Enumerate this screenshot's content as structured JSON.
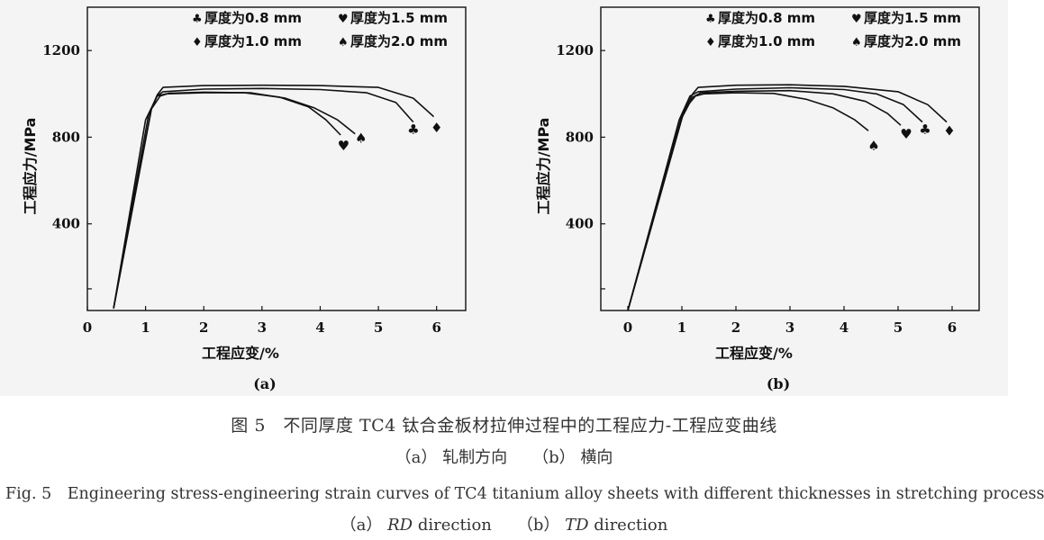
{
  "figure": {
    "caption_zh": "图 5　不同厚度 TC4 钛合金板材拉伸过程中的工程应力-工程应变曲线",
    "caption_zh_sub_a": "（a） 轧制方向",
    "caption_zh_sub_b": "（b） 横向",
    "caption_en": "Fig. 5　Engineering stress-engineering strain curves of TC4 titanium alloy sheets with different thicknesses in stretching process",
    "caption_en_sub_a_prefix": "（a） ",
    "caption_en_sub_a_italic": "RD",
    "caption_en_sub_a_suffix": " direction",
    "caption_en_sub_b_prefix": "（b） ",
    "caption_en_sub_b_italic": "TD",
    "caption_en_sub_b_suffix": " direction"
  },
  "chart_data": [
    {
      "type": "line",
      "panel_label": "(a)",
      "xlabel": "工程应变/%",
      "ylabel": "工程应力/MPa",
      "xlim": [
        0,
        6.5
      ],
      "ylim": [
        0,
        1400
      ],
      "xticks": [
        0,
        1,
        2,
        3,
        4,
        5,
        6
      ],
      "yticks": [
        400,
        800,
        1200
      ],
      "legend": [
        "厚度为0.8 mm",
        "厚度为1.5 mm",
        "厚度为1.0 mm",
        "厚度为2.0 mm"
      ],
      "legend_symbols": [
        "♣",
        "♥",
        "♦",
        "♠"
      ],
      "series": [
        {
          "name": "厚度为0.8 mm",
          "marker": "♣",
          "marker_at": [
            5.6,
            840
          ],
          "x": [
            0.45,
            1.0,
            1.2,
            1.3,
            2.0,
            3.0,
            4.0,
            4.8,
            5.3,
            5.6
          ],
          "y": [
            10,
            880,
            990,
            1010,
            1022,
            1025,
            1020,
            1005,
            960,
            870
          ]
        },
        {
          "name": "厚度为1.5 mm",
          "marker": "♥",
          "marker_at": [
            4.4,
            765
          ],
          "x": [
            0.45,
            1.1,
            1.2,
            1.35,
            2.0,
            2.7,
            3.3,
            3.8,
            4.1,
            4.35
          ],
          "y": [
            10,
            930,
            990,
            1000,
            1005,
            1005,
            985,
            940,
            880,
            810
          ]
        },
        {
          "name": "厚度为1.0 mm",
          "marker": "♦",
          "marker_at": [
            6.0,
            848
          ],
          "x": [
            0.45,
            1.05,
            1.2,
            1.3,
            2.0,
            3.0,
            4.0,
            5.0,
            5.6,
            5.95
          ],
          "y": [
            10,
            900,
            995,
            1030,
            1038,
            1040,
            1038,
            1030,
            980,
            895
          ]
        },
        {
          "name": "厚度为2.0 mm",
          "marker": "♠",
          "marker_at": [
            4.7,
            800
          ],
          "x": [
            0.45,
            1.1,
            1.25,
            1.4,
            2.0,
            2.8,
            3.4,
            3.9,
            4.3,
            4.6
          ],
          "y": [
            10,
            930,
            990,
            1003,
            1008,
            1005,
            980,
            935,
            880,
            815
          ]
        }
      ]
    },
    {
      "type": "line",
      "panel_label": "(b)",
      "xlabel": "工程应变/%",
      "ylabel": "工程应力/MPa",
      "xlim": [
        -0.5,
        6.5
      ],
      "ylim": [
        0,
        1400
      ],
      "xticks": [
        0,
        1,
        2,
        3,
        4,
        5,
        6
      ],
      "yticks": [
        400,
        800,
        1200
      ],
      "legend": [
        "厚度为0.8 mm",
        "厚度为1.5 mm",
        "厚度为1.0 mm",
        "厚度为2.0 mm"
      ],
      "legend_symbols": [
        "♣",
        "♥",
        "♦",
        "♠"
      ],
      "series": [
        {
          "name": "厚度为0.8 mm",
          "marker": "♣",
          "marker_at": [
            5.5,
            840
          ],
          "x": [
            0,
            0.95,
            1.15,
            1.3,
            2.0,
            3.0,
            4.0,
            4.6,
            5.1,
            5.45
          ],
          "y": [
            0,
            880,
            990,
            1010,
            1022,
            1028,
            1020,
            1000,
            950,
            870
          ]
        },
        {
          "name": "厚度为1.5 mm",
          "marker": "♥",
          "marker_at": [
            5.15,
            818
          ],
          "x": [
            0,
            1.0,
            1.2,
            1.35,
            2.0,
            3.0,
            3.8,
            4.4,
            4.8,
            5.05
          ],
          "y": [
            0,
            890,
            985,
            1005,
            1012,
            1015,
            1000,
            965,
            910,
            855
          ]
        },
        {
          "name": "厚度为1.0 mm",
          "marker": "♦",
          "marker_at": [
            5.95,
            832
          ],
          "x": [
            0,
            1.0,
            1.2,
            1.3,
            2.0,
            3.0,
            4.0,
            5.0,
            5.55,
            5.9
          ],
          "y": [
            0,
            900,
            1000,
            1030,
            1040,
            1042,
            1035,
            1010,
            950,
            870
          ]
        },
        {
          "name": "厚度为2.0 mm",
          "marker": "♠",
          "marker_at": [
            4.55,
            765
          ],
          "x": [
            0,
            1.05,
            1.25,
            1.4,
            2.0,
            2.7,
            3.3,
            3.8,
            4.2,
            4.45
          ],
          "y": [
            0,
            930,
            990,
            1000,
            1005,
            1002,
            975,
            935,
            880,
            830
          ]
        }
      ]
    }
  ]
}
